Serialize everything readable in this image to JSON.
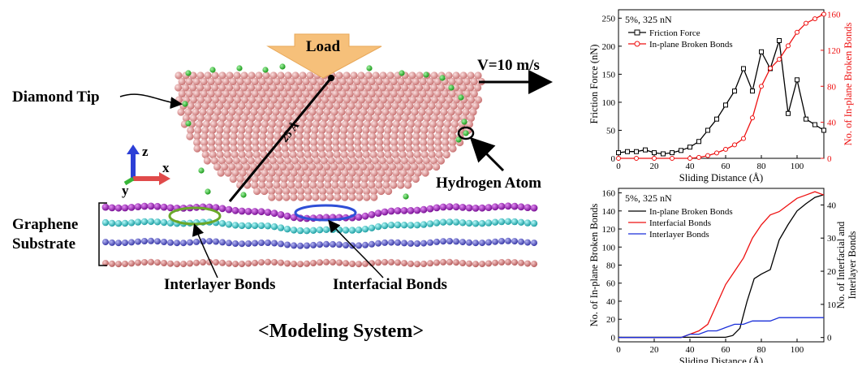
{
  "diagram": {
    "load_label": "Load",
    "velocity_label": "V=10 m/s",
    "diamond_tip_label": "Diamond Tip",
    "hydrogen_atom_label": "Hydrogen Atom",
    "graphene_label_line1": "Graphene",
    "graphene_label_line2": "Substrate",
    "interlayer_bonds_label": "Interlayer Bonds",
    "interfacial_bonds_label": "Interfacial Bonds",
    "radius_label": "25 Å",
    "axis_z": "z",
    "axis_x": "x",
    "axis_y": "y",
    "caption": "<Modeling System>",
    "colors": {
      "tip_atoms": "#e39a9a",
      "graphene_top": "#9b1fb8",
      "graphene_second": "#39c6c9",
      "graphene_third": "#5b5bd0",
      "graphene_bottom": "#d98080",
      "hydrogen": "#2fc12f",
      "load_arrow": "#f6c07a",
      "interlayer_ellipse": "#6aa82a",
      "interfacial_ellipse": "#2f4fd6"
    }
  },
  "chart_data": [
    {
      "type": "line",
      "annotation": "5%, 325 nN",
      "xlabel": "Sliding Distance (Å)",
      "ylabel": "Friction Force (nN)",
      "ylabel_right": "No. of In-plane Broken Bonds",
      "xlim": [
        0,
        115
      ],
      "ylim": [
        0,
        265
      ],
      "ylim_right": [
        0,
        165
      ],
      "xticks": [
        0,
        20,
        40,
        60,
        80,
        100
      ],
      "yticks": [
        0,
        50,
        100,
        150,
        200,
        250
      ],
      "yticks_right": [
        0,
        40,
        80,
        120,
        160
      ],
      "series": [
        {
          "name": "Friction Force",
          "axis": "left",
          "color": "#000000",
          "marker": "square",
          "x": [
            0,
            5,
            10,
            15,
            20,
            25,
            30,
            35,
            40,
            45,
            50,
            55,
            60,
            65,
            70,
            75,
            80,
            85,
            90,
            95,
            100,
            105,
            110,
            115
          ],
          "y": [
            10,
            12,
            12,
            15,
            10,
            8,
            10,
            14,
            20,
            30,
            50,
            70,
            95,
            120,
            160,
            120,
            190,
            160,
            210,
            80,
            140,
            70,
            60,
            50
          ]
        },
        {
          "name": "In-plane Broken Bonds",
          "axis": "right",
          "color": "#ee1111",
          "marker": "circle",
          "x": [
            0,
            10,
            20,
            30,
            40,
            45,
            50,
            55,
            60,
            65,
            70,
            75,
            80,
            85,
            90,
            95,
            100,
            105,
            110,
            115
          ],
          "y": [
            0,
            0,
            0,
            0,
            0,
            1,
            3,
            6,
            10,
            15,
            22,
            45,
            80,
            100,
            110,
            125,
            140,
            150,
            155,
            160
          ]
        }
      ]
    },
    {
      "type": "line",
      "annotation": "5%, 325 nN",
      "xlabel": "Sliding Distance (Å)",
      "ylabel": "No. of In-plane Broken Bonds",
      "ylabel_right": "No. of Interfacial and Interlayer Bonds",
      "xlim": [
        0,
        115
      ],
      "ylim": [
        -5,
        165
      ],
      "ylim_right": [
        -1.3,
        45
      ],
      "xticks": [
        0,
        20,
        40,
        60,
        80,
        100
      ],
      "yticks": [
        0,
        20,
        40,
        60,
        80,
        100,
        120,
        140,
        160
      ],
      "yticks_right": [
        0,
        10,
        20,
        30,
        40
      ],
      "series": [
        {
          "name": "In-plane Broken Bonds",
          "axis": "left",
          "color": "#000000",
          "x": [
            0,
            40,
            50,
            55,
            60,
            64,
            68,
            72,
            76,
            80,
            85,
            90,
            95,
            100,
            105,
            110,
            115
          ],
          "y": [
            0,
            0,
            0,
            0,
            0,
            2,
            10,
            40,
            65,
            70,
            75,
            108,
            125,
            140,
            148,
            155,
            158
          ]
        },
        {
          "name": "Interfacial Bonds",
          "axis": "right",
          "color": "#ee1111",
          "x": [
            0,
            35,
            40,
            45,
            50,
            55,
            60,
            65,
            70,
            75,
            80,
            85,
            90,
            95,
            100,
            105,
            110,
            115
          ],
          "y": [
            0,
            0,
            1,
            2,
            4,
            10,
            16,
            20,
            24,
            30,
            34,
            37,
            38,
            40,
            42,
            43,
            44,
            43
          ]
        },
        {
          "name": "Interlayer Bonds",
          "axis": "right",
          "color": "#1a2fd9",
          "x": [
            0,
            30,
            35,
            40,
            45,
            50,
            55,
            60,
            65,
            70,
            75,
            80,
            85,
            90,
            95,
            100,
            105,
            110,
            115
          ],
          "y": [
            0,
            0,
            0,
            1,
            1,
            2,
            2,
            3,
            4,
            4,
            5,
            5,
            5,
            6,
            6,
            6,
            6,
            6,
            6
          ]
        }
      ]
    }
  ]
}
